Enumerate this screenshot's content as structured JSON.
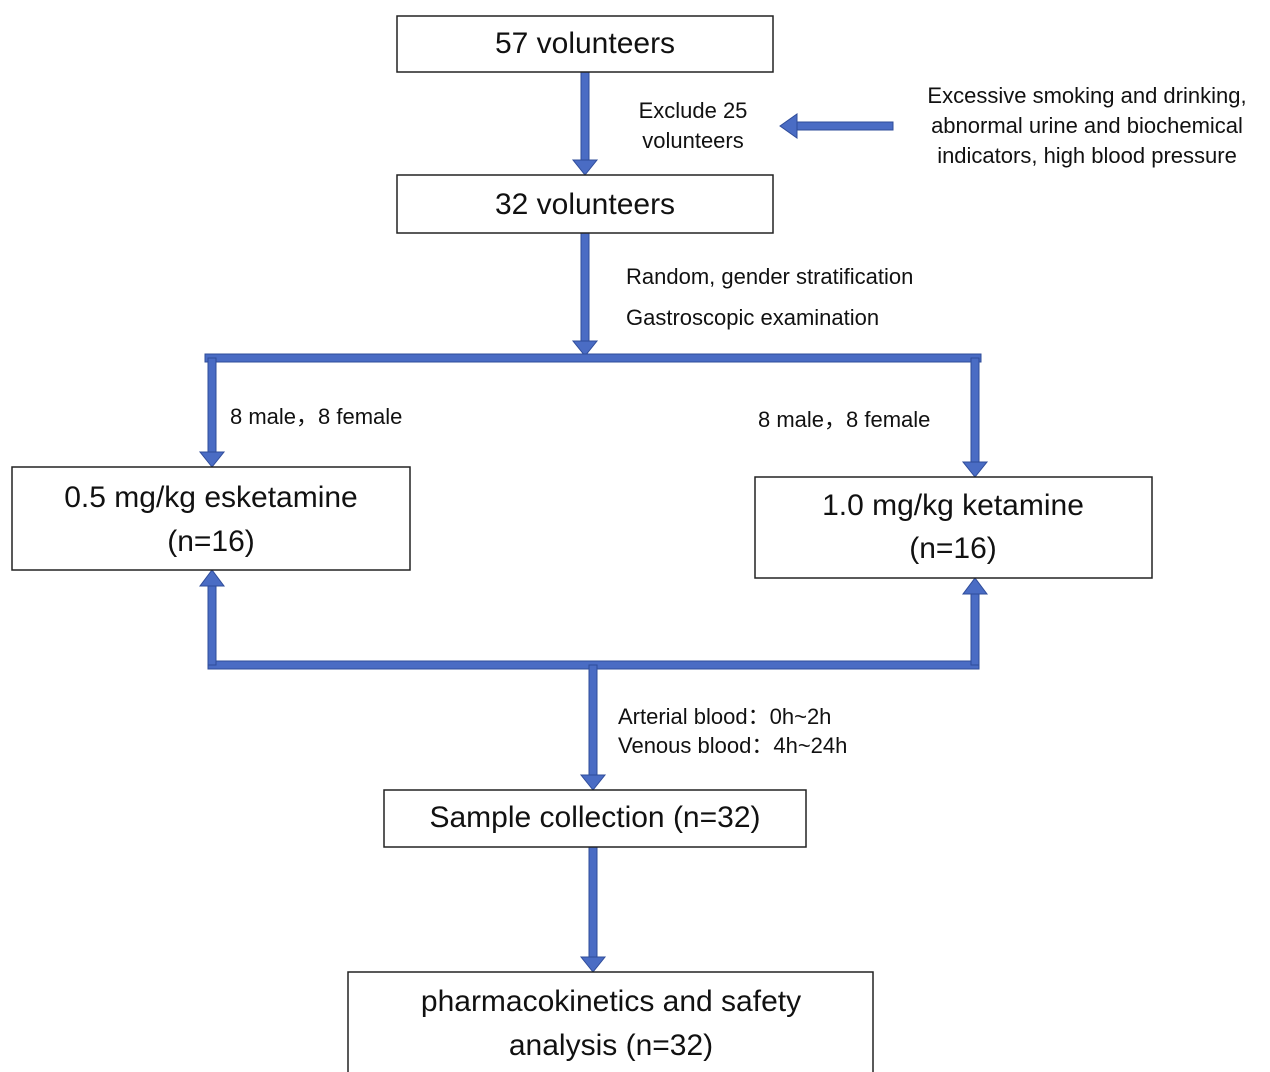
{
  "nodes": [
    {
      "lines": [
        "57 volunteers"
      ]
    },
    {
      "lines": [
        "32 volunteers"
      ]
    },
    {
      "lines": [
        "0.5 mg/kg esketamine",
        "(n=16)"
      ]
    },
    {
      "lines": [
        "1.0 mg/kg ketamine",
        "(n=16)"
      ]
    },
    {
      "lines": [
        "Sample collection (n=32)"
      ]
    },
    {
      "lines": [
        "pharmacokinetics and safety",
        "analysis (n=32)"
      ]
    }
  ],
  "labels": [
    {
      "lines": [
        "Exclude 25",
        "volunteers"
      ]
    },
    {
      "lines": [
        "Excessive smoking and drinking,",
        "abnormal urine and biochemical",
        "indicators, high blood pressure"
      ]
    },
    {
      "lines": [
        "Random, gender stratification",
        "Gastroscopic examination"
      ]
    },
    {
      "lines": [
        "8 male，8 female"
      ]
    },
    {
      "lines": [
        "8 male，8 female"
      ]
    },
    {
      "lines": [
        "Arterial blood：0h~2h",
        "Venous blood：4h~24h"
      ]
    }
  ]
}
